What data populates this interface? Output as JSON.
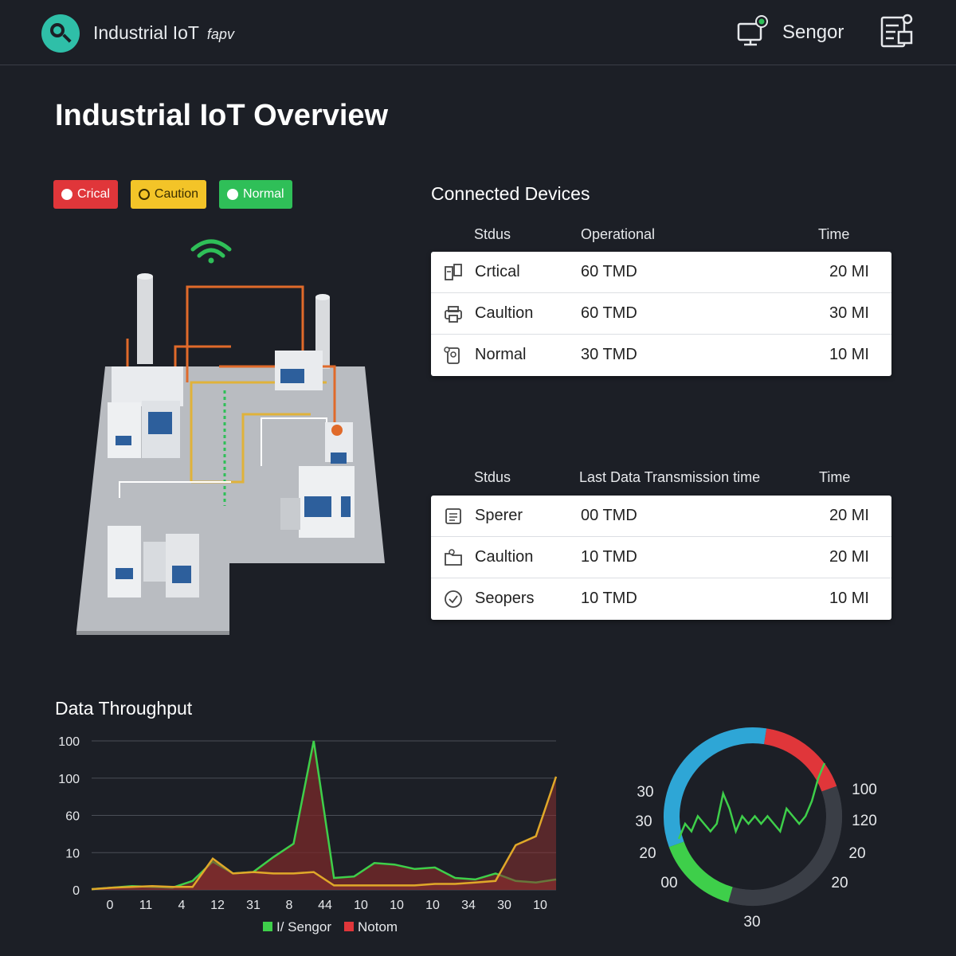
{
  "header": {
    "app_title": "Industrial IoT",
    "app_title_suffix": "fapv",
    "sensor_label": "Sengor"
  },
  "page": {
    "title": "Industrial IoT Overview"
  },
  "status_badges": [
    {
      "label": "Crical",
      "color": "#e0363a"
    },
    {
      "label": "Caution",
      "color": "#f3c428"
    },
    {
      "label": "Normal",
      "color": "#2fbf58"
    }
  ],
  "connected_devices": {
    "title": "Connected Devices",
    "columns": [
      "Stdus",
      "Operational",
      "Time"
    ],
    "rows": [
      {
        "icon": "server-icon",
        "status": "Crtical",
        "value": "60 TMD",
        "time": "20 MI"
      },
      {
        "icon": "printer-icon",
        "status": "Caultion",
        "value": "60 TMD",
        "time": "30 MI"
      },
      {
        "icon": "device-icon",
        "status": "Normal",
        "value": "30 TMD",
        "time": "10 MI"
      }
    ]
  },
  "transmissions": {
    "columns": [
      "Stdus",
      "Last Data Transmission time",
      "Time"
    ],
    "rows": [
      {
        "icon": "document-icon",
        "status": "Sperer",
        "value": "00 TMD",
        "time": "20 MI"
      },
      {
        "icon": "folder-icon",
        "status": "Caultion",
        "value": "10 TMD",
        "time": "20 MI"
      },
      {
        "icon": "check-circle-icon",
        "status": "Seopers",
        "value": "10 TMD",
        "time": "10 MI"
      }
    ]
  },
  "throughput": {
    "title": "Data Throughput"
  },
  "chart_data": [
    {
      "type": "line",
      "title": "Data Throughput",
      "y_tick_labels": [
        "0",
        "10",
        "60",
        "100",
        "100"
      ],
      "x_tick_labels": [
        "0",
        "11",
        "4",
        "12",
        "31",
        "8",
        "44",
        "10",
        "10",
        "10",
        "34",
        "30",
        "10"
      ],
      "legend": [
        "I/ Sengor",
        "Notom"
      ],
      "legend_position": "bottom",
      "grid": true,
      "series": [
        {
          "name": "I/ Sengor",
          "color": "#3ecf4a",
          "values": [
            0.5,
            1.5,
            2.5,
            2,
            1.5,
            6,
            19,
            11,
            12,
            22,
            31,
            100,
            8,
            9,
            18,
            17,
            14,
            15,
            8,
            7,
            11,
            6,
            5,
            7
          ]
        },
        {
          "name": "Notom",
          "color": "#e0a829",
          "values": [
            0.5,
            1.5,
            2,
            2.5,
            2,
            2,
            21,
            11,
            12,
            11,
            11,
            12,
            3,
            3,
            3,
            3,
            3,
            4,
            4,
            5,
            6,
            30,
            36,
            76
          ]
        }
      ]
    },
    {
      "type": "gauge",
      "left_labels": [
        "30",
        "30",
        "20",
        "00"
      ],
      "right_labels": [
        "100",
        "120",
        "20",
        "20"
      ],
      "bottom_label": "30",
      "segments": [
        {
          "color": "#2ea6d6",
          "value": 33
        },
        {
          "color": "#e0363a",
          "value": 17
        },
        {
          "color": "#3a3e46",
          "value": 35
        },
        {
          "color": "#3ecf4a",
          "value": 15
        }
      ],
      "signal": [
        0,
        2,
        1,
        3,
        2,
        1,
        2,
        6,
        4,
        1,
        3,
        2,
        3,
        2,
        3,
        2,
        1,
        4,
        3,
        2,
        3,
        5,
        8,
        10
      ]
    }
  ]
}
